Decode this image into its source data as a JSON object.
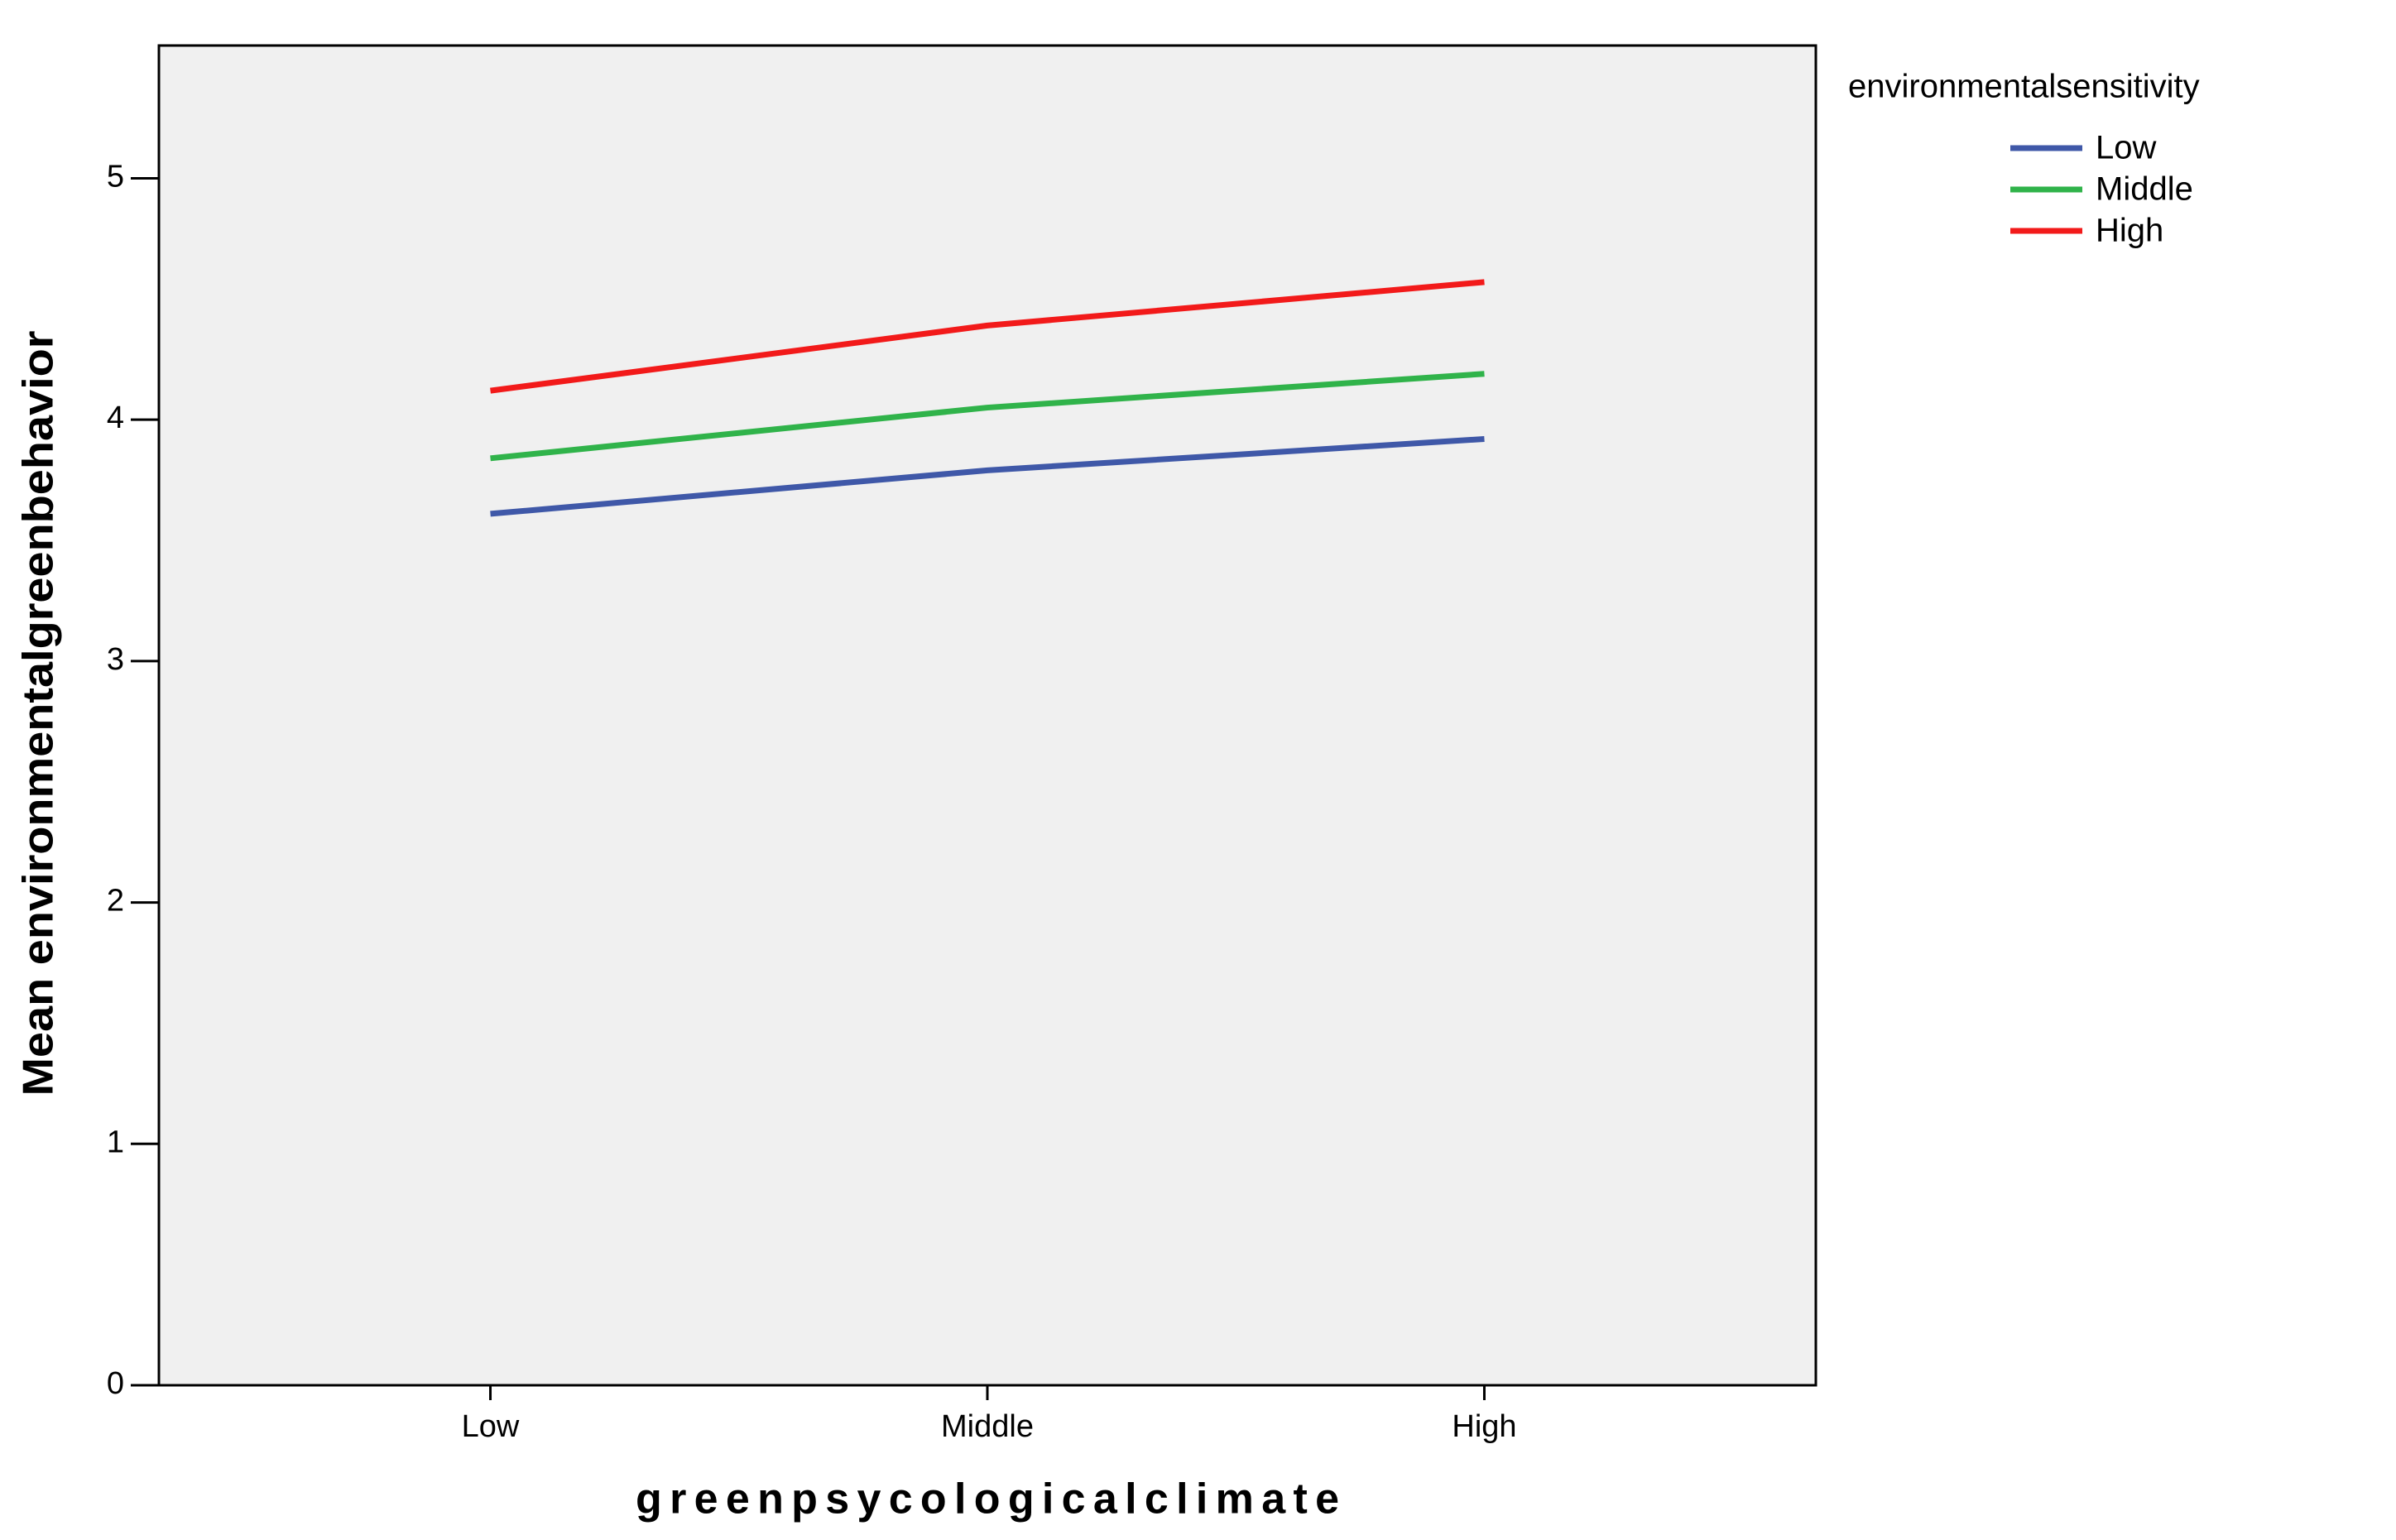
{
  "chart_data": {
    "type": "line",
    "x_label": "greenpsycologicalclimate",
    "y_label": "Mean environmentalgreenbehavior",
    "legend_title": "environmentalsensitivity",
    "legend": "right",
    "categories": [
      "Low",
      "Middle",
      "High"
    ],
    "series": [
      {
        "name": "Low",
        "color": "#3f58a8",
        "values": [
          3.61,
          3.79,
          3.92
        ]
      },
      {
        "name": "Middle",
        "color": "#30b34a",
        "values": [
          3.84,
          4.05,
          4.19
        ]
      },
      {
        "name": "High",
        "color": "#f21a1a",
        "values": [
          4.12,
          4.39,
          4.57
        ]
      }
    ],
    "ylim": [
      0,
      5.55
    ],
    "yticks": [
      0,
      1,
      2,
      3,
      4,
      5
    ],
    "grid": false
  }
}
